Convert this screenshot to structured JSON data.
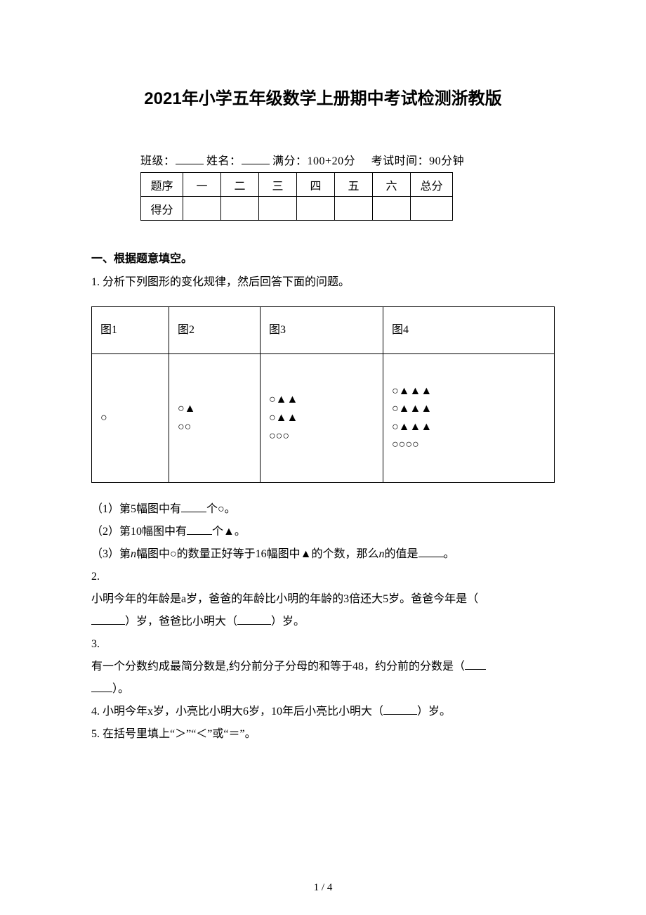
{
  "title": "2021年小学五年级数学上册期中考试检测浙教版",
  "info": {
    "class_label": "班级：",
    "name_label": "姓名：",
    "full_score_label": "满分：",
    "full_score_value": "100+20分",
    "time_label": "考试时间：",
    "time_value": "90分钟"
  },
  "score_table": {
    "row1_label": "题序",
    "cols": [
      "一",
      "二",
      "三",
      "四",
      "五",
      "六"
    ],
    "total_label": "总分",
    "row2_label": "得分"
  },
  "section1_head": "一、根据题意填空。",
  "q1": {
    "stem": "1. 分析下列图形的变化规律，然后回答下面的问题。",
    "headers": [
      "图1",
      "图2",
      "图3",
      "图4"
    ],
    "cells": {
      "c1": "○",
      "c2": [
        "○▲",
        "○○"
      ],
      "c3": [
        "○▲▲",
        "○▲▲",
        "○○○"
      ],
      "c4": [
        "○▲▲▲",
        "○▲▲▲",
        "○▲▲▲",
        "○○○○"
      ]
    },
    "sub1_a": "（1）第5幅图中有",
    "sub1_b": "个○。",
    "sub2_a": "（2）第10幅图中有",
    "sub2_b": "个▲。",
    "sub3_a": "（3）第",
    "sub3_n": "n",
    "sub3_b": "幅图中○的数量正好等于16幅图中▲的个数，那么",
    "sub3_c": "的值是",
    "sub3_d": "。"
  },
  "q2": {
    "num": "2.",
    "line1": "小明今年的年龄是a岁，爸爸的年龄比小明的年龄的3倍还大5岁。爸爸今年是（",
    "line2a": "）岁，爸爸比小明大（",
    "line2b": "）岁。"
  },
  "q3": {
    "num": "3.",
    "line1": "有一个分数约成最简分数是,约分前分子分母的和等于48，约分前的分数是（",
    "line2": "）。"
  },
  "q4": {
    "a": "4. 小明今年x岁，小亮比小明大6岁，10年后小亮比小明大（",
    "b": "）岁。"
  },
  "q5": "5. 在括号里填上“＞”“＜”或“＝”。",
  "page_num": "1 / 4"
}
